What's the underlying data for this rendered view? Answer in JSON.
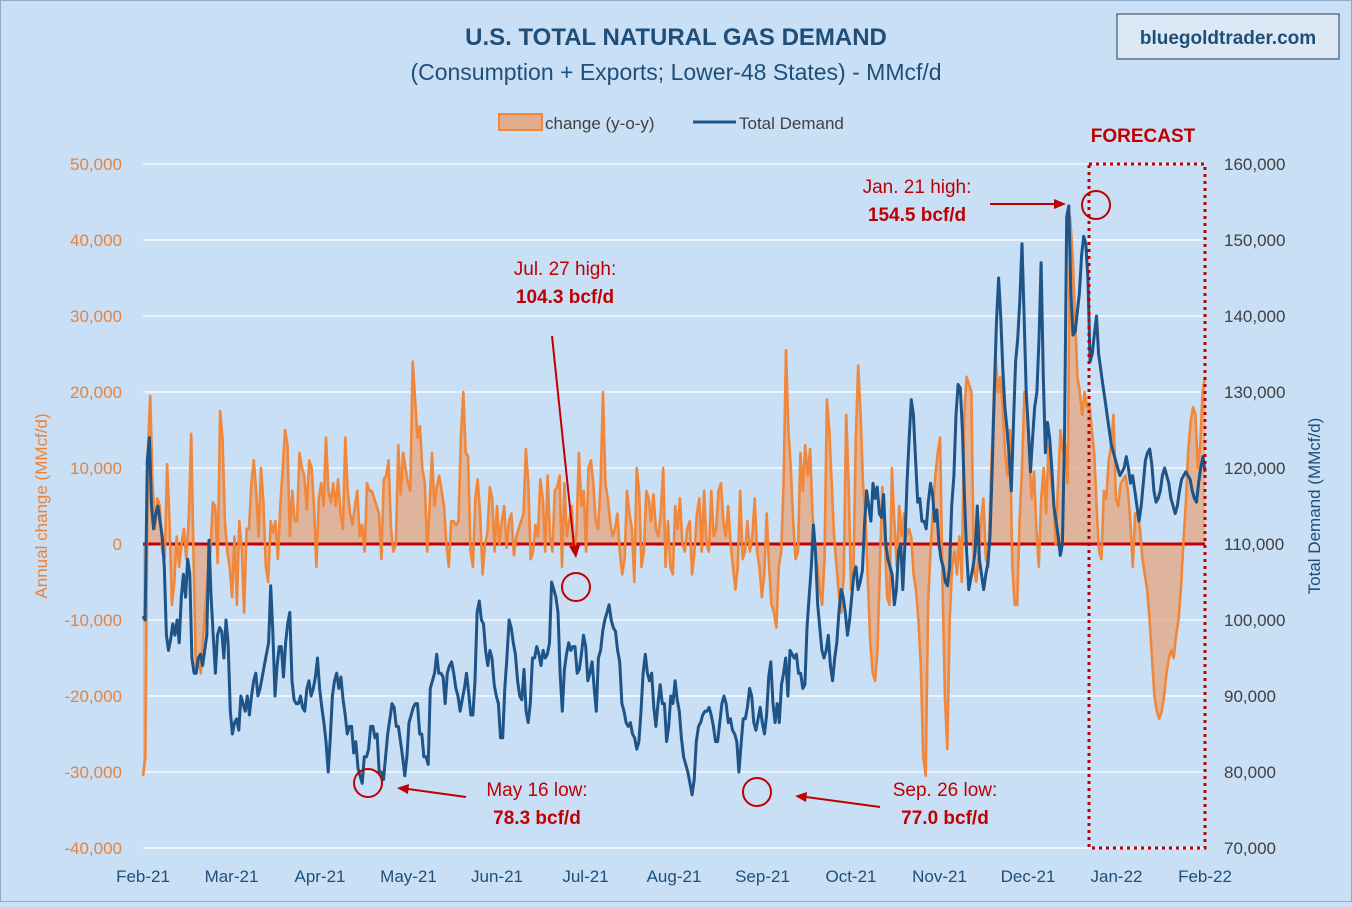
{
  "chart_data": {
    "type": "line",
    "title": "U.S. TOTAL NATURAL GAS DEMAND",
    "subtitle": "(Consumption + Exports; Lower-48 States) - MMcf/d",
    "watermark": "bluegoldtrader.com",
    "ylabel_left": "Annual change (MMcf/d)",
    "ylabel_right": "Total Demand (MMcf/d)",
    "ylim_left": [
      -40000,
      50000
    ],
    "ylim_right": [
      70000,
      160000
    ],
    "left_ticks": [
      "50,000",
      "40,000",
      "30,000",
      "20,000",
      "10,000",
      "0",
      "-10,000",
      "-20,000",
      "-30,000",
      "-40,000"
    ],
    "right_ticks": [
      "160,000",
      "150,000",
      "140,000",
      "130,000",
      "120,000",
      "110,000",
      "100,000",
      "90,000",
      "80,000",
      "70,000"
    ],
    "x_ticks": [
      "Feb-21",
      "Mar-21",
      "Apr-21",
      "May-21",
      "Jun-21",
      "Jul-21",
      "Aug-21",
      "Sep-21",
      "Oct-21",
      "Nov-21",
      "Dec-21",
      "Jan-22",
      "Feb-22"
    ],
    "grid": true,
    "legend": "top-center",
    "forecast_label": "FORECAST",
    "colors": {
      "change": "#f0873a",
      "change_fill": "#e2ad8c",
      "demand": "#1e5487",
      "zero_line": "#c00000",
      "annotation": "#c00000",
      "axis_left": "#e8823a",
      "title": "#1f4e79"
    },
    "series": [
      {
        "name": "change (y-o-y)",
        "x_start": "2021-02-01",
        "x_step_days": 1,
        "values": [
          -30500,
          -28000,
          12000,
          19500,
          8000,
          2000,
          6000,
          5000,
          -1000,
          -2000,
          10500,
          3000,
          -8000,
          -5000,
          1000,
          -3000,
          0,
          2000,
          -2000,
          3500,
          14500,
          -2000,
          -17000,
          -15000,
          -17000,
          -12000,
          -8000,
          -4000,
          -1000,
          5500,
          5000,
          -2500,
          17500,
          14000,
          3000,
          -1000,
          -3000,
          -7000,
          1000,
          -8000,
          3000,
          -500,
          -9000,
          2000,
          2000,
          8000,
          11000,
          7000,
          1000,
          10000,
          5500,
          -3000,
          -5000,
          3000,
          1500,
          3000,
          -2000,
          5000,
          10000,
          15000,
          13000,
          1000,
          7000,
          3000,
          3000,
          12000,
          10000,
          9000,
          4500,
          11000,
          10000,
          5000,
          -3000,
          6000,
          8000,
          5000,
          14000,
          7000,
          5500,
          8000,
          5000,
          8500,
          4000,
          2000,
          14000,
          7000,
          4000,
          2500,
          5000,
          7000,
          1000,
          2500,
          -1000,
          8000,
          7000,
          7000,
          6000,
          5000,
          4000,
          -2000,
          8500,
          9000,
          11000,
          2000,
          -1000,
          0,
          13000,
          6500,
          12000,
          10000,
          8000,
          7000,
          24000,
          19000,
          14000,
          15500,
          10000,
          8000,
          -1000,
          5000,
          12000,
          5000,
          7500,
          9000,
          7000,
          5000,
          0,
          -3000,
          3000,
          3000,
          2500,
          3000,
          14000,
          20000,
          12000,
          11500,
          -1000,
          -3000,
          6000,
          8500,
          4000,
          -4000,
          0,
          1500,
          7500,
          6000,
          -1000,
          5000,
          0,
          3000,
          5000,
          -500,
          3000,
          4000,
          -1500,
          1000,
          2000,
          3000,
          4000,
          12500,
          8000,
          -2000,
          -1000,
          2500,
          1000,
          8500,
          6000,
          -1000,
          9000,
          1000,
          -1000,
          7000,
          7500,
          9000,
          -3000,
          8000,
          1000,
          3000,
          5000,
          -1000,
          1500,
          12000,
          5000,
          7000,
          -1000,
          10000,
          11000,
          8000,
          3000,
          2000,
          8000,
          20000,
          8000,
          6000,
          3000,
          1000,
          2000,
          4000,
          -1000,
          -4000,
          -2000,
          7000,
          4000,
          2000,
          -5000,
          10000,
          7000,
          -3000,
          -1000,
          7000,
          6000,
          3000,
          6500,
          2000,
          1000,
          4000,
          10000,
          -3000,
          3000,
          -3000,
          -4000,
          5000,
          2000,
          6000,
          0,
          -1000,
          2000,
          3000,
          -4000,
          -1000,
          4000,
          6000,
          -1000,
          7000,
          0,
          -1000,
          7000,
          1000,
          2000,
          7000,
          8000,
          3000,
          1000,
          5000,
          0,
          -3000,
          -6000,
          -3000,
          7000,
          -2000,
          -1000,
          3000,
          -1000,
          1000,
          6000,
          -1000,
          -3000,
          -7000,
          -4000,
          4000,
          -3000,
          -8000,
          -9000,
          -11000,
          -3000,
          -1000,
          8000,
          25500,
          15000,
          10000,
          3000,
          -2000,
          -1000,
          12000,
          7000,
          13000,
          9000,
          12500,
          4000,
          -1000,
          -3000,
          -6000,
          -8000,
          -2000,
          19000,
          15000,
          8000,
          1000,
          -3000,
          -7000,
          -9000,
          -4000,
          17000,
          8000,
          -6000,
          -4000,
          14000,
          23500,
          17000,
          8000,
          4000,
          -5000,
          -13000,
          -17000,
          -18000,
          -14000,
          -3000,
          7500,
          1000,
          -7000,
          -8000,
          10000,
          3000,
          -3000,
          5000,
          1000,
          4000,
          1000,
          2000,
          1000,
          -4000,
          -6000,
          -10000,
          -16000,
          -28000,
          -30500,
          -8000,
          -1000,
          4500,
          9000,
          12000,
          14000,
          -5000,
          -20000,
          -27000,
          -10000,
          -3000,
          -1000,
          -4000,
          1000,
          -5000,
          17000,
          22000,
          21000,
          20000,
          -3000,
          -5000,
          -2000,
          3000,
          6000,
          -2000,
          -3000,
          8000,
          16500,
          25000,
          20000,
          22000,
          18000,
          12000,
          9000,
          15000,
          -3000,
          -8000,
          -8000,
          3000,
          10000,
          20000,
          18500,
          12000,
          6000,
          9500,
          2000,
          -3000,
          6000,
          10000,
          4000,
          13000,
          8500,
          6000,
          0,
          8000,
          15000,
          12000,
          13000,
          8000,
          43000,
          38000,
          30000,
          22000,
          20000,
          17000,
          20000,
          18000,
          18500,
          15000,
          12000,
          5000,
          -1000,
          -2000,
          7000,
          6000,
          11000,
          13000,
          17000,
          6000,
          5000,
          8000,
          8500,
          9000,
          7000,
          3000,
          -3000,
          4000,
          4000,
          2000,
          -2000,
          -4000,
          -6000,
          -10000,
          -15000,
          -20000,
          -22000,
          -23000,
          -22000,
          -20000,
          -17000,
          -15000,
          -14000,
          -15000,
          -12000,
          -10000,
          -6000,
          0,
          5000,
          12000,
          16000,
          18000,
          17000,
          10000,
          13000,
          20000,
          22000
        ]
      },
      {
        "name": "Total Demand",
        "x_start": "2021-02-01",
        "x_step_days": 1,
        "values": [
          100500,
          100000,
          121000,
          124000,
          115000,
          112000,
          114000,
          115000,
          113000,
          111000,
          107000,
          98000,
          96000,
          97500,
          99500,
          98000,
          100000,
          97000,
          103000,
          106000,
          103000,
          108000,
          106000,
          95000,
          93000,
          93000,
          95000,
          95500,
          94000,
          96000,
          98000,
          110500,
          103000,
          98000,
          93000,
          98000,
          99000,
          98500,
          95000,
          100000,
          97000,
          88000,
          85000,
          86500,
          87000,
          85500,
          90000,
          89000,
          88000,
          90000,
          87500,
          90000,
          92000,
          93000,
          90000,
          91000,
          92500,
          94000,
          95500,
          97000,
          104500,
          98500,
          90000,
          94000,
          96500,
          96500,
          92500,
          97000,
          99500,
          101000,
          92000,
          89500,
          89000,
          89000,
          90000,
          88500,
          88000,
          91000,
          92000,
          90000,
          91000,
          92500,
          95000,
          91000,
          88500,
          86500,
          84000,
          80000,
          84500,
          90000,
          92000,
          93000,
          91000,
          92500,
          89500,
          87500,
          85000,
          86000,
          86000,
          82500,
          84000,
          80500,
          79500,
          78500,
          82000,
          82000,
          83000,
          86000,
          86000,
          84500,
          85000,
          80000,
          80000,
          79000,
          82000,
          85000,
          87000,
          89000,
          88500,
          86000,
          86000,
          84000,
          82000,
          79500,
          82000,
          86500,
          87500,
          88500,
          89000,
          89000,
          85000,
          85000,
          82000,
          82000,
          81000,
          91000,
          92000,
          93000,
          95500,
          93000,
          93000,
          92500,
          89000,
          93000,
          94000,
          94500,
          93000,
          91000,
          90000,
          88000,
          89500,
          91000,
          93000,
          90500,
          87500,
          87500,
          92000,
          101000,
          102500,
          100000,
          99500,
          96000,
          94000,
          96000,
          95000,
          91500,
          90000,
          89000,
          84500,
          84500,
          91000,
          95000,
          100000,
          99000,
          97000,
          95500,
          92000,
          90000,
          89500,
          93500,
          88000,
          86500,
          89000,
          95000,
          95000,
          96500,
          95500,
          94000,
          96000,
          95000,
          95500,
          97000,
          105000,
          104000,
          103000,
          101000,
          93000,
          88000,
          93500,
          95500,
          97000,
          96000,
          96500,
          96500,
          93000,
          93500,
          95500,
          98000,
          96500,
          92000,
          93000,
          94500,
          91000,
          88000,
          95000,
          96000,
          98500,
          100000,
          101000,
          102000,
          100000,
          99000,
          98500,
          96000,
          94500,
          89000,
          88000,
          86500,
          86000,
          86500,
          85000,
          84500,
          83000,
          84000,
          88000,
          93000,
          95500,
          93000,
          92000,
          93000,
          88500,
          86000,
          89000,
          91500,
          89000,
          89000,
          84000,
          86000,
          90000,
          89000,
          92000,
          89500,
          88000,
          84500,
          82000,
          81000,
          80000,
          78500,
          77000,
          79000,
          84000,
          86000,
          86500,
          87500,
          88000,
          88000,
          88500,
          87500,
          86000,
          84000,
          84000,
          86500,
          89000,
          90000,
          89000,
          86500,
          87000,
          85500,
          85000,
          84000,
          80000,
          83500,
          87000,
          87000,
          88500,
          91000,
          90000,
          86500,
          85500,
          87000,
          88500,
          86500,
          85000,
          87500,
          92500,
          94500,
          89000,
          86500,
          89000,
          86500,
          91500,
          93000,
          95000,
          90000,
          96000,
          95500,
          95000,
          95500,
          93000,
          93000,
          91000,
          91500,
          99000,
          103000,
          107000,
          112500,
          109000,
          102000,
          99000,
          96000,
          95000,
          96000,
          98000,
          94000,
          92000,
          95000,
          97000,
          101000,
          104000,
          103000,
          101000,
          98000,
          100000,
          103000,
          106000,
          107000,
          104000,
          105000,
          106500,
          112500,
          117000,
          115000,
          113000,
          118000,
          116000,
          117500,
          114000,
          113500,
          116500,
          110000,
          108000,
          107000,
          106000,
          102000,
          104000,
          109000,
          110000,
          104000,
          110000,
          118000,
          124000,
          129000,
          127000,
          121000,
          115500,
          116000,
          113000,
          113000,
          112000,
          115500,
          118000,
          116500,
          113000,
          114500,
          110000,
          108000,
          107000,
          105000,
          104500,
          107000,
          115000,
          119000,
          127000,
          131000,
          130500,
          125000,
          116000,
          109000,
          104000,
          105500,
          107000,
          109000,
          115000,
          108000,
          106000,
          104000,
          106000,
          107500,
          111000,
          120000,
          130000,
          139000,
          145000,
          140000,
          133000,
          128000,
          125000,
          121500,
          117000,
          126000,
          134000,
          137000,
          142000,
          149500,
          140000,
          130000,
          125000,
          119500,
          124000,
          128000,
          130000,
          137000,
          147000,
          132000,
          122000,
          126000,
          124000,
          120000,
          115000,
          113000,
          111000,
          108500,
          110000,
          124000,
          153000,
          154500,
          143000,
          137500,
          138000,
          140500,
          143000,
          148000,
          150500,
          149500,
          145000,
          134000,
          135000,
          137500,
          140000,
          135000,
          133000,
          131000,
          129000,
          127000,
          125000,
          123000,
          122000,
          121000,
          120000,
          119000,
          119500,
          120000,
          121500,
          120000,
          118000,
          119000,
          117000,
          115000,
          113000,
          115000,
          118000,
          121000,
          122000,
          122500,
          120500,
          117000,
          115500,
          116000,
          117000,
          119000,
          120000,
          119000,
          118000,
          116000,
          115000,
          114000,
          115000,
          117000,
          118500,
          119000,
          119500,
          119000,
          118500,
          117000,
          116000,
          115500,
          118000,
          120000,
          121500,
          119500
        ]
      }
    ],
    "annotations": [
      {
        "line1": "Jan. 21 high:",
        "line2": "154.5 bcf/d"
      },
      {
        "line1": "Jul. 27 high:",
        "line2": "104.3 bcf/d"
      },
      {
        "line1": "May 16 low:",
        "line2": "78.3 bcf/d"
      },
      {
        "line1": "Sep. 26 low:",
        "line2": "77.0 bcf/d"
      }
    ]
  }
}
